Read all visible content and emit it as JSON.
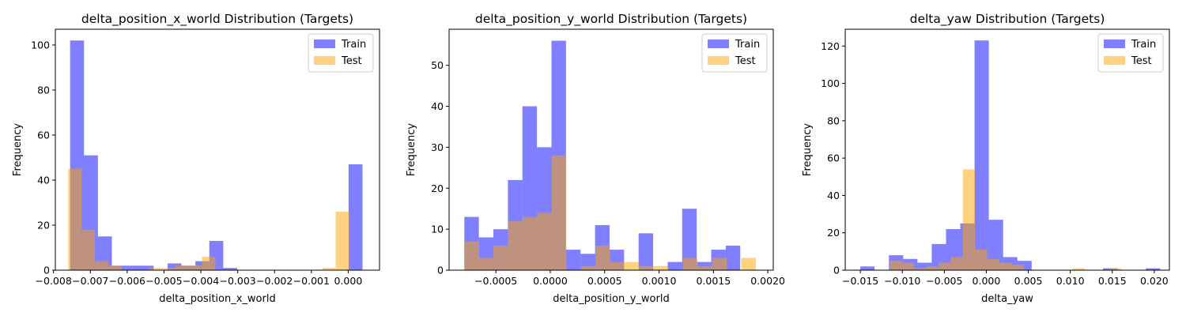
{
  "chart_data": [
    {
      "type": "bar",
      "title": "delta_position_x_world Distribution (Targets)",
      "xlabel": "delta_position_x_world",
      "ylabel": "Frequency",
      "xlim": [
        -0.00795,
        0.00085
      ],
      "ylim": [
        0,
        107
      ],
      "xticks": [
        -0.008,
        -0.007,
        -0.006,
        -0.005,
        -0.004,
        -0.003,
        -0.002,
        -0.001,
        0.0
      ],
      "xtick_labels": [
        "−0.008",
        "−0.007",
        "−0.006",
        "−0.005",
        "−0.004",
        "−0.003",
        "−0.002",
        "−0.001",
        "0.000"
      ],
      "yticks": [
        0,
        20,
        40,
        60,
        80,
        100
      ],
      "legend": {
        "position": "upper-right",
        "entries": [
          "Train",
          "Test"
        ]
      },
      "series": [
        {
          "name": "Train",
          "color": "#0000ff",
          "alpha": 0.5,
          "bin_start": -0.00755,
          "bin_width": 0.000378,
          "values": [
            102,
            51,
            15,
            2,
            2,
            2,
            0,
            3,
            2,
            4,
            13,
            1,
            0,
            0,
            0,
            0,
            0,
            0,
            0,
            0,
            47
          ]
        },
        {
          "name": "Test",
          "color": "#ffa500",
          "alpha": 0.5,
          "bin_start": -0.0076,
          "bin_width": 0.000363,
          "values": [
            45,
            18,
            4,
            2,
            0,
            0,
            1,
            1,
            2,
            2,
            6,
            0,
            0,
            0,
            0,
            0,
            0,
            0,
            0,
            1,
            26
          ]
        }
      ]
    },
    {
      "type": "bar",
      "title": "delta_position_y_world Distribution (Targets)",
      "xlabel": "delta_position_y_world",
      "ylabel": "Frequency",
      "xlim": [
        -0.00093,
        0.00205
      ],
      "ylim": [
        0,
        58.8
      ],
      "xticks": [
        -0.0005,
        0.0,
        0.0005,
        0.001,
        0.0015,
        0.002
      ],
      "xtick_labels": [
        "−0.0005",
        "0.0000",
        "0.0005",
        "0.0010",
        "0.0015",
        "0.0020"
      ],
      "yticks": [
        0,
        10,
        20,
        30,
        40,
        50
      ],
      "legend": {
        "position": "upper-right",
        "entries": [
          "Train",
          "Test"
        ]
      },
      "series": [
        {
          "name": "Train",
          "color": "#0000ff",
          "alpha": 0.5,
          "bin_start": -0.00079,
          "bin_width": 0.0001335,
          "values": [
            13,
            8,
            10,
            22,
            40,
            30,
            56,
            5,
            4,
            11,
            5,
            0,
            9,
            0,
            2,
            15,
            2,
            5,
            6
          ]
        },
        {
          "name": "Test",
          "color": "#ffa500",
          "alpha": 0.5,
          "bin_start": -0.00079,
          "bin_width": 0.000134,
          "values": [
            7,
            3,
            6,
            12,
            13,
            14,
            28,
            0,
            1,
            6,
            2,
            2,
            1,
            1,
            0,
            3,
            1,
            3,
            0,
            3
          ]
        }
      ]
    },
    {
      "type": "bar",
      "title": "delta_yaw Distribution (Targets)",
      "xlabel": "delta_yaw",
      "ylabel": "Frequency",
      "xlim": [
        -0.0168,
        0.0218
      ],
      "ylim": [
        0,
        129
      ],
      "xticks": [
        -0.015,
        -0.01,
        -0.005,
        0.0,
        0.005,
        0.01,
        0.015,
        0.02
      ],
      "xtick_labels": [
        "−0.015",
        "−0.010",
        "−0.005",
        "0.000",
        "0.005",
        "0.010",
        "0.015",
        "0.020"
      ],
      "yticks": [
        0,
        20,
        40,
        60,
        80,
        100,
        120
      ],
      "legend": {
        "position": "upper-right",
        "entries": [
          "Train",
          "Test"
        ]
      },
      "series": [
        {
          "name": "Train",
          "color": "#0000ff",
          "alpha": 0.5,
          "bin_start": -0.015,
          "bin_width": 0.0017,
          "values": [
            2,
            0,
            8,
            6,
            4,
            14,
            22,
            25,
            123,
            27,
            7,
            5,
            0,
            0,
            0,
            0,
            0,
            1,
            0,
            0,
            1
          ]
        },
        {
          "name": "Test",
          "color": "#ffa500",
          "alpha": 0.5,
          "bin_start": -0.0115,
          "bin_width": 0.00145,
          "values": [
            5,
            4,
            1,
            2,
            4,
            7,
            54,
            11,
            6,
            4,
            3,
            0,
            0,
            0,
            0,
            1,
            0,
            0,
            1
          ]
        }
      ]
    }
  ]
}
